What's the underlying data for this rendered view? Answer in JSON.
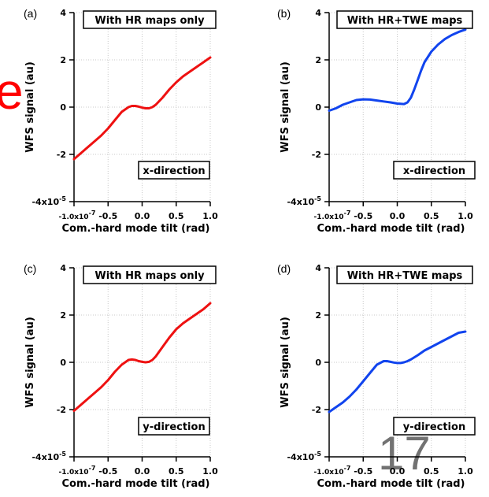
{
  "slide": {
    "left_edge_fragment": "e",
    "page_number": "17",
    "colors": {
      "fragment": "#ff0000",
      "red_series": "#ee1111",
      "blue_series": "#1144ee"
    }
  },
  "chart_data": [
    {
      "type": "line",
      "panel_label": "(a)",
      "title": "With HR maps only",
      "annotation": "x-direction",
      "xlabel": "Com.-hard mode tilt (rad)",
      "ylabel": "WFS signal (au)",
      "xlim": [
        -1.0,
        1.0
      ],
      "ylim": [
        -4,
        4
      ],
      "x_ticks": [
        "-1.0x10^-7",
        "-0.5",
        "0.0",
        "0.5",
        "1.0"
      ],
      "x_tick_values": [
        -1.0,
        -0.5,
        0.0,
        0.5,
        1.0
      ],
      "y_ticks": [
        "-4x10^-5",
        "-2",
        "0",
        "2",
        "4"
      ],
      "y_tick_values": [
        -4,
        -2,
        0,
        2,
        4
      ],
      "grid": true,
      "series": [
        {
          "color": "#ee1111",
          "x": [
            -1.0,
            -0.9,
            -0.8,
            -0.7,
            -0.6,
            -0.5,
            -0.4,
            -0.3,
            -0.2,
            -0.15,
            -0.1,
            -0.05,
            0.0,
            0.05,
            0.1,
            0.15,
            0.2,
            0.3,
            0.4,
            0.5,
            0.6,
            0.7,
            0.8,
            0.9,
            1.0
          ],
          "y": [
            -2.2,
            -1.95,
            -1.7,
            -1.45,
            -1.2,
            -0.9,
            -0.55,
            -0.2,
            0.0,
            0.05,
            0.05,
            0.02,
            -0.02,
            -0.05,
            -0.05,
            0.0,
            0.1,
            0.4,
            0.75,
            1.05,
            1.3,
            1.5,
            1.7,
            1.9,
            2.1
          ]
        }
      ]
    },
    {
      "type": "line",
      "panel_label": "(b)",
      "title": "With HR+TWE maps",
      "annotation": "x-direction",
      "xlabel": "Com.-hard mode tilt (rad)",
      "ylabel": "WFS signal (au)",
      "xlim": [
        -1.0,
        1.0
      ],
      "ylim": [
        -4,
        4
      ],
      "x_ticks": [
        "-1.0x10^-7",
        "-0.5",
        "0.0",
        "0.5",
        "1.0"
      ],
      "x_tick_values": [
        -1.0,
        -0.5,
        0.0,
        0.5,
        1.0
      ],
      "y_ticks": [
        "-4x10^-5",
        "-2",
        "0",
        "2",
        "4"
      ],
      "y_tick_values": [
        -4,
        -2,
        0,
        2,
        4
      ],
      "grid": true,
      "series": [
        {
          "color": "#1144ee",
          "x": [
            -1.0,
            -0.9,
            -0.8,
            -0.7,
            -0.6,
            -0.5,
            -0.4,
            -0.3,
            -0.2,
            -0.1,
            0.0,
            0.1,
            0.15,
            0.2,
            0.25,
            0.3,
            0.35,
            0.4,
            0.5,
            0.6,
            0.7,
            0.8,
            0.9,
            1.0
          ],
          "y": [
            -0.15,
            -0.05,
            0.1,
            0.2,
            0.3,
            0.33,
            0.32,
            0.28,
            0.24,
            0.2,
            0.15,
            0.13,
            0.2,
            0.4,
            0.75,
            1.15,
            1.55,
            1.9,
            2.35,
            2.65,
            2.88,
            3.05,
            3.18,
            3.28
          ]
        }
      ]
    },
    {
      "type": "line",
      "panel_label": "(c)",
      "title": "With HR maps only",
      "annotation": "y-direction",
      "xlabel": "Com.-hard mode tilt (rad)",
      "ylabel": "WFS signal (au)",
      "xlim": [
        -1.0,
        1.0
      ],
      "ylim": [
        -4,
        4
      ],
      "x_ticks": [
        "-1.0x10^-7",
        "-0.5",
        "0.0",
        "0.5",
        "1.0"
      ],
      "x_tick_values": [
        -1.0,
        -0.5,
        0.0,
        0.5,
        1.0
      ],
      "y_ticks": [
        "-4x10^-5",
        "-2",
        "0",
        "2",
        "4"
      ],
      "y_tick_values": [
        -4,
        -2,
        0,
        2,
        4
      ],
      "grid": true,
      "series": [
        {
          "color": "#ee1111",
          "x": [
            -1.0,
            -0.9,
            -0.8,
            -0.7,
            -0.6,
            -0.5,
            -0.4,
            -0.3,
            -0.2,
            -0.15,
            -0.1,
            -0.05,
            0.0,
            0.05,
            0.1,
            0.15,
            0.2,
            0.3,
            0.4,
            0.5,
            0.6,
            0.7,
            0.8,
            0.9,
            1.0
          ],
          "y": [
            -2.05,
            -1.8,
            -1.55,
            -1.3,
            -1.05,
            -0.75,
            -0.4,
            -0.1,
            0.1,
            0.12,
            0.1,
            0.05,
            0.02,
            0.0,
            0.02,
            0.1,
            0.25,
            0.65,
            1.05,
            1.4,
            1.65,
            1.85,
            2.05,
            2.25,
            2.5
          ]
        }
      ]
    },
    {
      "type": "line",
      "panel_label": "(d)",
      "title": "With HR+TWE maps",
      "annotation": "y-direction",
      "xlabel": "Com.-hard mode tilt (rad)",
      "ylabel": "WFS signal (au)",
      "xlim": [
        -1.0,
        1.0
      ],
      "ylim": [
        -4,
        4
      ],
      "x_ticks": [
        "-1.0x10^-7",
        "-0.5",
        "0.0",
        "0.5",
        "1.0"
      ],
      "x_tick_values": [
        -1.0,
        -0.5,
        0.0,
        0.5,
        1.0
      ],
      "y_ticks": [
        "-4x10^-5",
        "-2",
        "0",
        "2",
        "4"
      ],
      "y_tick_values": [
        -4,
        -2,
        0,
        2,
        4
      ],
      "grid": true,
      "series": [
        {
          "color": "#1144ee",
          "x": [
            -1.0,
            -0.9,
            -0.8,
            -0.7,
            -0.6,
            -0.5,
            -0.4,
            -0.3,
            -0.2,
            -0.15,
            -0.1,
            -0.05,
            0.0,
            0.05,
            0.1,
            0.15,
            0.2,
            0.3,
            0.4,
            0.5,
            0.6,
            0.7,
            0.8,
            0.9,
            1.0
          ],
          "y": [
            -2.1,
            -1.9,
            -1.7,
            -1.45,
            -1.15,
            -0.8,
            -0.45,
            -0.1,
            0.05,
            0.05,
            0.02,
            -0.01,
            -0.03,
            -0.03,
            0.0,
            0.05,
            0.12,
            0.3,
            0.5,
            0.65,
            0.8,
            0.95,
            1.1,
            1.25,
            1.3
          ]
        }
      ]
    }
  ]
}
